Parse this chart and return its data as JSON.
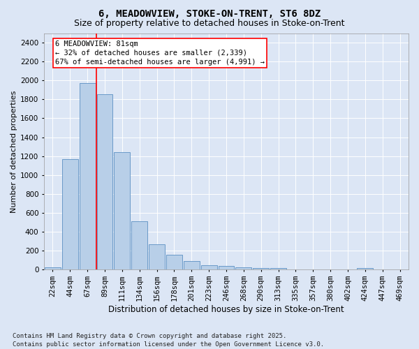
{
  "title1": "6, MEADOWVIEW, STOKE-ON-TRENT, ST6 8DZ",
  "title2": "Size of property relative to detached houses in Stoke-on-Trent",
  "xlabel": "Distribution of detached houses by size in Stoke-on-Trent",
  "ylabel": "Number of detached properties",
  "categories": [
    "22sqm",
    "44sqm",
    "67sqm",
    "89sqm",
    "111sqm",
    "134sqm",
    "156sqm",
    "178sqm",
    "201sqm",
    "223sqm",
    "246sqm",
    "268sqm",
    "290sqm",
    "313sqm",
    "335sqm",
    "357sqm",
    "380sqm",
    "402sqm",
    "424sqm",
    "447sqm",
    "469sqm"
  ],
  "values": [
    28,
    1170,
    1975,
    1855,
    1240,
    515,
    270,
    155,
    88,
    48,
    38,
    22,
    18,
    15,
    0,
    0,
    0,
    0,
    18,
    0,
    0
  ],
  "bar_color": "#b8cfe8",
  "bar_edge_color": "#5a8fc2",
  "bg_color": "#dce6f5",
  "grid_color": "#ffffff",
  "annotation_text": "6 MEADOWVIEW: 81sqm\n← 32% of detached houses are smaller (2,339)\n67% of semi-detached houses are larger (4,991) →",
  "vline_bin": 2,
  "ylim": [
    0,
    2500
  ],
  "yticks": [
    0,
    200,
    400,
    600,
    800,
    1000,
    1200,
    1400,
    1600,
    1800,
    2000,
    2200,
    2400
  ],
  "footer": "Contains HM Land Registry data © Crown copyright and database right 2025.\nContains public sector information licensed under the Open Government Licence v3.0.",
  "title1_fontsize": 10,
  "title2_fontsize": 9,
  "xlabel_fontsize": 8.5,
  "ylabel_fontsize": 8,
  "tick_fontsize": 7.5,
  "annotation_fontsize": 7.5,
  "footer_fontsize": 6.5
}
